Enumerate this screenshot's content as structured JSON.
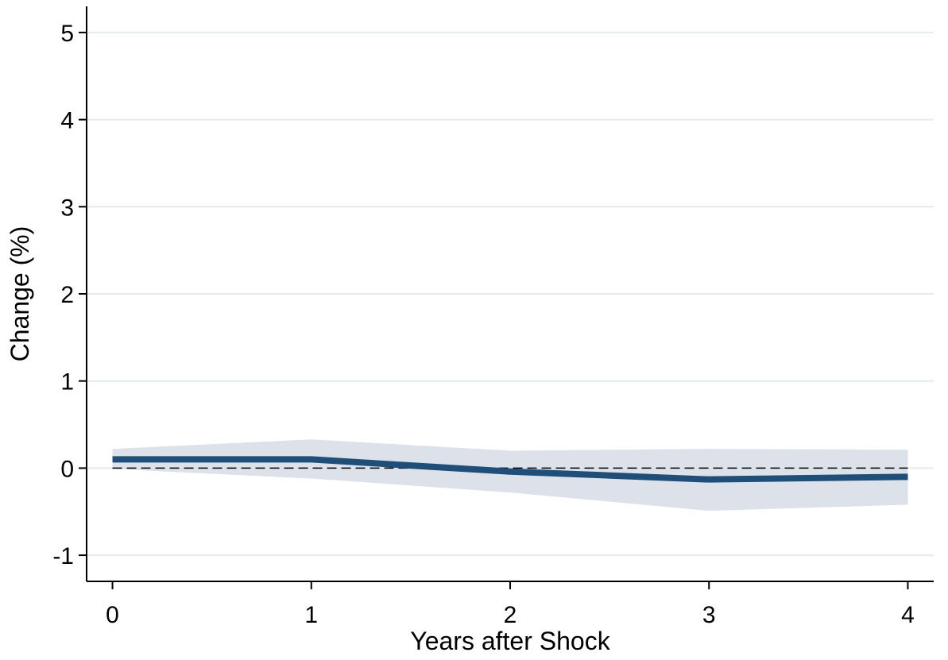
{
  "chart_data": {
    "type": "line",
    "title": "",
    "xlabel": "Years after Shock",
    "ylabel": "Change (%)",
    "x": [
      0,
      1,
      2,
      3,
      4
    ],
    "xticks": [
      0,
      1,
      2,
      3,
      4
    ],
    "yticks": [
      -1,
      0,
      1,
      2,
      3,
      4,
      5
    ],
    "xlim": [
      -0.13,
      4.13
    ],
    "ylim": [
      -1.3,
      5.3
    ],
    "grid": true,
    "reference_line": {
      "y": 0,
      "style": "dashed",
      "color": "#000000"
    },
    "series": [
      {
        "values": [
          0.1,
          0.1,
          -0.04,
          -0.13,
          -0.1
        ],
        "color": "#1f4e79"
      }
    ],
    "confidence_band": {
      "upper": [
        0.22,
        0.33,
        0.2,
        0.22,
        0.21
      ],
      "lower": [
        -0.01,
        -0.12,
        -0.28,
        -0.49,
        -0.42
      ],
      "color": "#dde2ea"
    },
    "colors": {
      "grid": "#e4ecec",
      "axis": "#000000"
    }
  }
}
